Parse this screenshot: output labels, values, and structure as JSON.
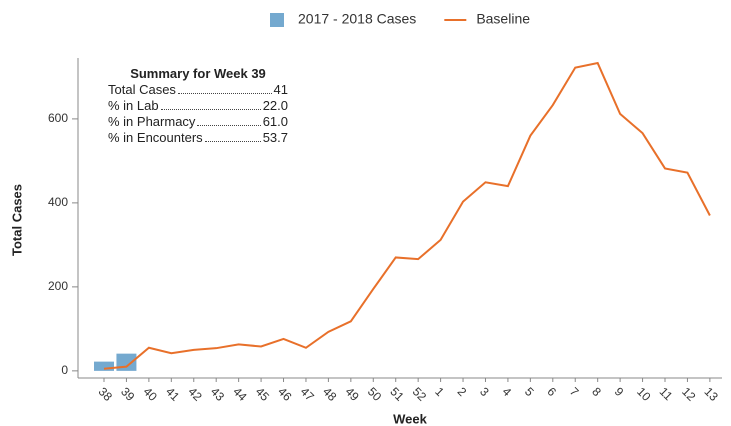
{
  "chart_data": {
    "type": "bar_line",
    "xlabel": "Week",
    "ylabel": "Total Cases",
    "categories": [
      "38",
      "39",
      "40",
      "41",
      "42",
      "43",
      "44",
      "45",
      "46",
      "47",
      "48",
      "49",
      "50",
      "51",
      "52",
      "1",
      "2",
      "3",
      "4",
      "5",
      "6",
      "7",
      "8",
      "9",
      "10",
      "11",
      "12",
      "13"
    ],
    "series": [
      {
        "name": "2017 - 2018 Cases",
        "type": "bar",
        "color": "#74a9cf",
        "values": [
          22,
          41,
          null,
          null,
          null,
          null,
          null,
          null,
          null,
          null,
          null,
          null,
          null,
          null,
          null,
          null,
          null,
          null,
          null,
          null,
          null,
          null,
          null,
          null,
          null,
          null,
          null,
          null
        ]
      },
      {
        "name": "Baseline",
        "type": "line",
        "color": "#e8702a",
        "values": [
          5,
          10,
          55,
          42,
          50,
          54,
          63,
          58,
          76,
          55,
          93,
          118,
          195,
          270,
          266,
          312,
          403,
          449,
          440,
          560,
          633,
          722,
          733,
          612,
          566,
          482,
          472,
          370
        ]
      }
    ],
    "ylim": [
      -17,
      745
    ],
    "yticks": [
      0,
      200,
      400,
      600
    ],
    "grid": false,
    "legend": "top",
    "summary": {
      "title": "Summary for Week 39",
      "rows": [
        {
          "label": "Total Cases",
          "value": "41"
        },
        {
          "label": "% in Lab",
          "value": "22.0"
        },
        {
          "label": "% in Pharmacy",
          "value": "61.0"
        },
        {
          "label": "% in Encounters",
          "value": "53.7"
        }
      ]
    }
  }
}
